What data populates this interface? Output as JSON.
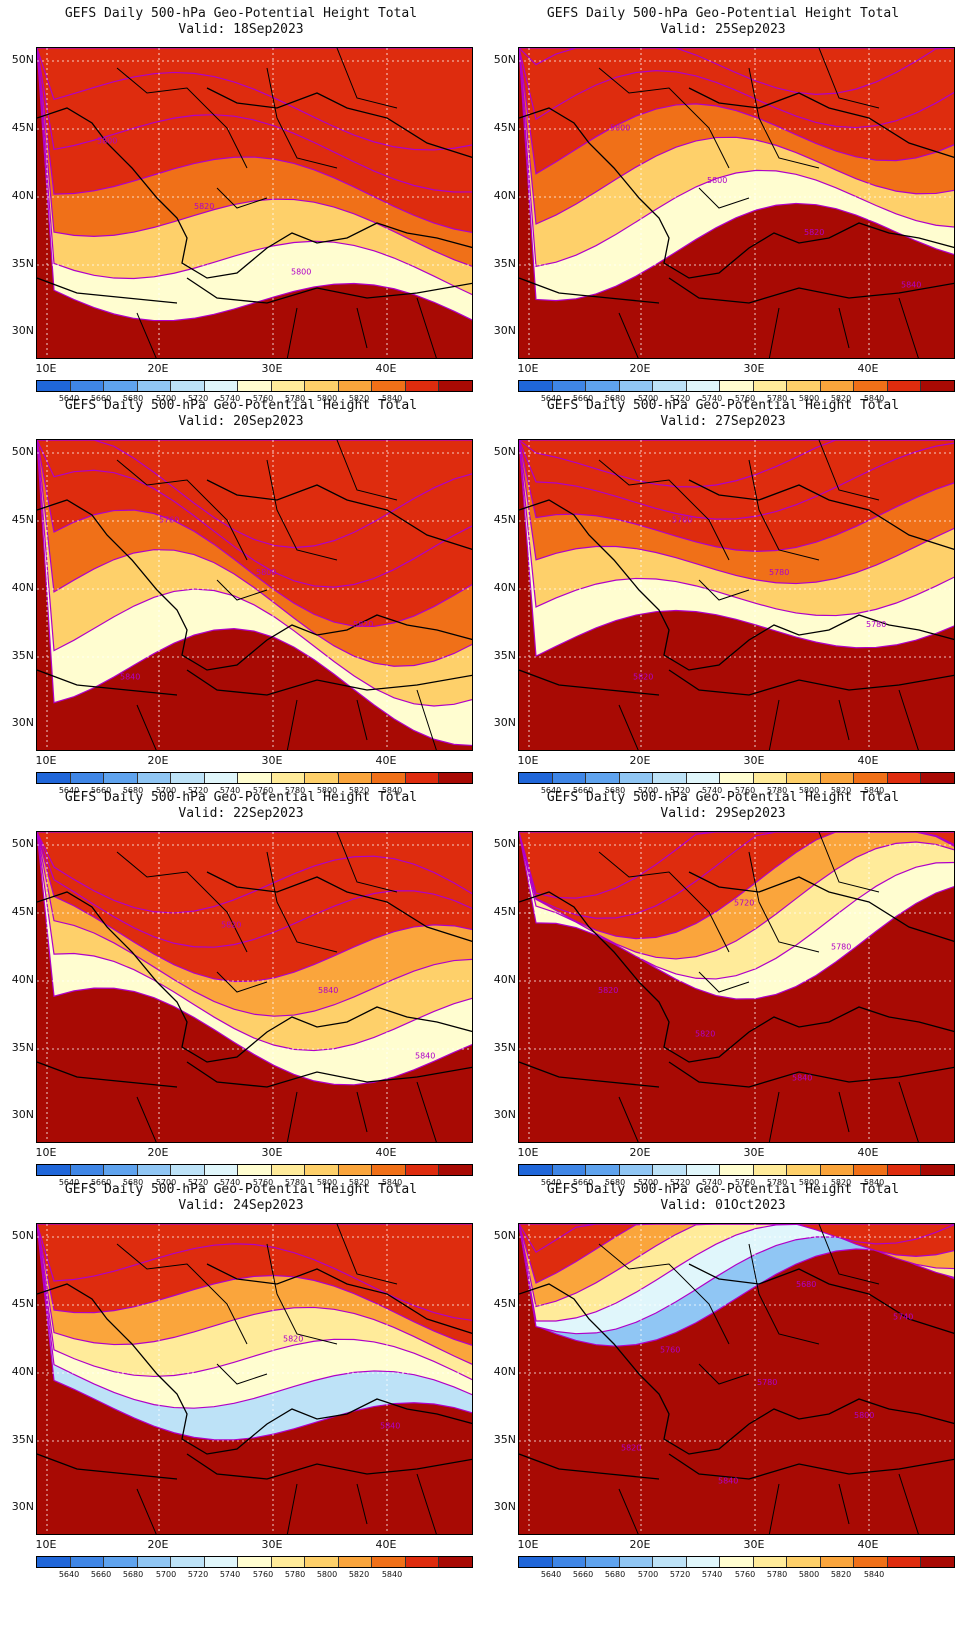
{
  "panels": [
    {
      "title": "GEFS Daily 500-hPa Geo-Potential Height Total",
      "valid": "Valid: 18Sep2023",
      "labels": [
        "5800",
        "5820",
        "5800"
      ],
      "level": 0.75
    },
    {
      "title": "GEFS Daily 500-hPa Geo-Potential Height Total",
      "valid": "Valid: 25Sep2023",
      "labels": [
        "5800",
        "5800",
        "5820",
        "5840"
      ],
      "level": 0.7
    },
    {
      "title": "GEFS Daily 500-hPa Geo-Potential Height Total",
      "valid": "Valid: 20Sep2023",
      "labels": [
        "5760",
        "5800",
        "5820",
        "5840"
      ],
      "level": 0.7
    },
    {
      "title": "GEFS Daily 500-hPa Geo-Potential Height Total",
      "valid": "Valid: 27Sep2023",
      "labels": [
        "5760",
        "5780",
        "5780",
        "5820"
      ],
      "level": 0.68
    },
    {
      "title": "GEFS Daily 500-hPa Geo-Potential Height Total",
      "valid": "Valid: 22Sep2023",
      "labels": [
        "5820",
        "5840",
        "5840"
      ],
      "level": 0.6
    },
    {
      "title": "GEFS Daily 500-hPa Geo-Potential Height Total",
      "valid": "Valid: 29Sep2023",
      "labels": [
        "5720",
        "5780",
        "5820",
        "5820",
        "5840"
      ],
      "level": 0.45
    },
    {
      "title": "GEFS Daily 500-hPa Geo-Potential Height Total",
      "valid": "Valid: 24Sep2023",
      "labels": [
        "5820",
        "5840"
      ],
      "level": 0.55
    },
    {
      "title": "GEFS Daily 500-hPa Geo-Potential Height Total",
      "valid": "Valid: 01Oct2023",
      "labels": [
        "5680",
        "5740",
        "5760",
        "5780",
        "5800",
        "5820",
        "5840"
      ],
      "level": 0.3
    }
  ],
  "y_ticks": [
    "50N",
    "45N",
    "40N",
    "35N",
    "30N"
  ],
  "x_ticks": [
    "10E",
    "20E",
    "30E",
    "40E"
  ],
  "colorbar": {
    "colors": [
      "#1f66d9",
      "#3f86e6",
      "#5fa3ee",
      "#90c6f4",
      "#bde2f7",
      "#e0f6fb",
      "#fffdd0",
      "#ffeb9a",
      "#fed06a",
      "#faa53c",
      "#f07018",
      "#de2c0e",
      "#a80a04"
    ],
    "labels": [
      "5640",
      "5660",
      "5680",
      "5700",
      "5720",
      "5740",
      "5760",
      "5780",
      "5800",
      "5820",
      "5840"
    ]
  },
  "contour_color": "#b000c8"
}
